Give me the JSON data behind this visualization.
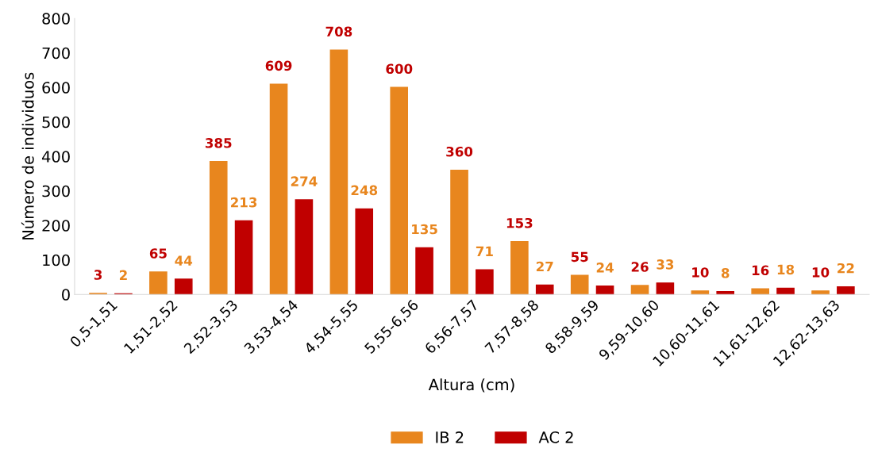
{
  "chart_data": {
    "type": "bar",
    "xlabel": "Altura (cm)",
    "ylabel": "Número de individuos",
    "categories": [
      "0,5-1,51",
      "1,51-2,52",
      "2,52-3,53",
      "3,53-4,54",
      "4,54-5,55",
      "5,55-6,56",
      "6,56-7,57",
      "7,57-8,58",
      "8,58-9,59",
      "9,59-10,60",
      "10,60-11,61",
      "11,61-12,62",
      "12,62-13,63"
    ],
    "series": [
      {
        "name": "IB 2",
        "color": "#e8861e",
        "values": [
          3,
          65,
          385,
          609,
          708,
          600,
          360,
          153,
          55,
          26,
          10,
          16,
          10
        ]
      },
      {
        "name": "AC 2",
        "color": "#c00000",
        "values": [
          2,
          44,
          213,
          274,
          248,
          135,
          71,
          27,
          24,
          33,
          8,
          18,
          22
        ]
      }
    ],
    "ylim": [
      0,
      800
    ],
    "yticks": [
      0,
      100,
      200,
      300,
      400,
      500,
      600,
      700,
      800
    ],
    "data_labels": true,
    "legend": "bottom",
    "grid": false
  }
}
